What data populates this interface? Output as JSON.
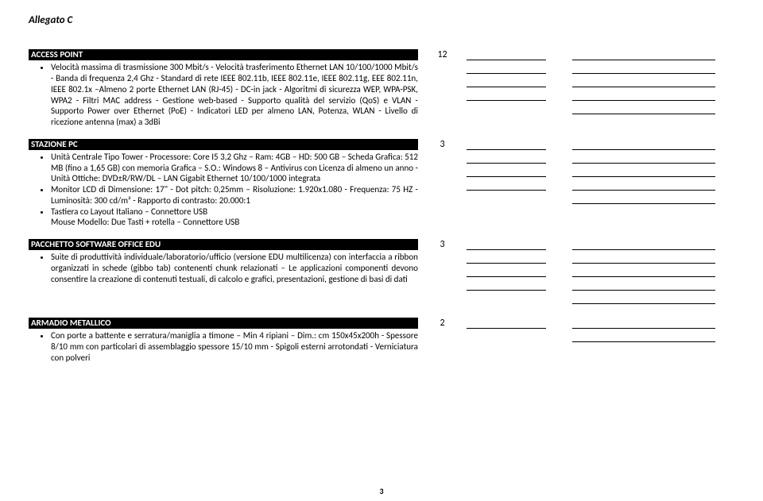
{
  "header": "Allegato C",
  "pageNumber": "3",
  "sections": [
    {
      "title": "ACCESS POINT",
      "qty": "12",
      "blanks1": 4,
      "blanks2": 5,
      "bullets": [
        "Velocità massima di trasmissione 300 Mbit/s - Velocità trasferimento Ethernet LAN 10/100/1000 Mbit/s - Banda di frequenza 2,4 Ghz - Standard di rete IEEE 802.11b, IEEE 802.11e, IEEE 802.11g, EEE 802.11n, IEEE 802.1x –Almeno 2 porte Ethernet LAN (RJ-45) - DC-in jack - Algoritmi di sicurezza WEP, WPA-PSK, WPA2 - Filtri MAC address - Gestione web-based - Supporto qualità del servizio (QoS) e VLAN - Supporto Power over Ethernet (PoE) - Indicatori LED per almeno LAN, Potenza, WLAN - Livello di ricezione antenna (max) a 3dBi"
      ]
    },
    {
      "title": "STAZIONE PC",
      "qty": "3",
      "blanks1": 4,
      "blanks2": 5,
      "bullets": [
        "Unità Centrale Tipo Tower - Processore: Core I5 3,2 Ghz – Ram: 4GB – HD: 500 GB – Scheda Grafica: 512 MB (fino a 1,65 GB) con memoria Grafica – S.O.: Windows 8 – Antivirus con Licenza di almeno un anno - Unità Ottiche: DVD±R/RW/DL – LAN Gigabit Ethernet 10/100/1000 integrata",
        "Monitor LCD di Dimensione: 17\" - Dot pitch: 0,25mm – Risoluzione: 1.920x1.080 - Frequenza: 75 HZ - Luminosità: 300 cd/m² - Rapporto di contrasto: 20.000:1",
        "Tastiera co Layout Italiano – Connettore USB\nMouse Modello: Due Tasti + rotella – Connettore USB"
      ]
    },
    {
      "title": "PACCHETTO SOFTWARE OFFICE EDU",
      "qty": "3",
      "blanks1": 4,
      "blanks2": 5,
      "bullets": [
        "Suite di produttività individuale/laboratorio/ufficio (versione EDU multilicenza) con interfaccia a ribbon organizzati in schede (gibbo tab) contenenti chunk relazionati – Le applicazioni componenti devono consentire la creazione di contenuti testuali, di calcolo e grafici, presentazioni, gestione di basi di dati"
      ]
    },
    {
      "title": "ARMADIO METALLICO",
      "qty": "2",
      "blanks1": 1,
      "blanks2": 2,
      "bullets": [
        "Con porte a battente e serratura/maniglia a timone – Min 4 ripiani – Dim.: cm 150x45x200h - Spessore 8/10 mm con particolari di assemblaggio spessore 15/10 mm - Spigoli esterni arrotondati - Verniciatura con polveri"
      ]
    }
  ]
}
